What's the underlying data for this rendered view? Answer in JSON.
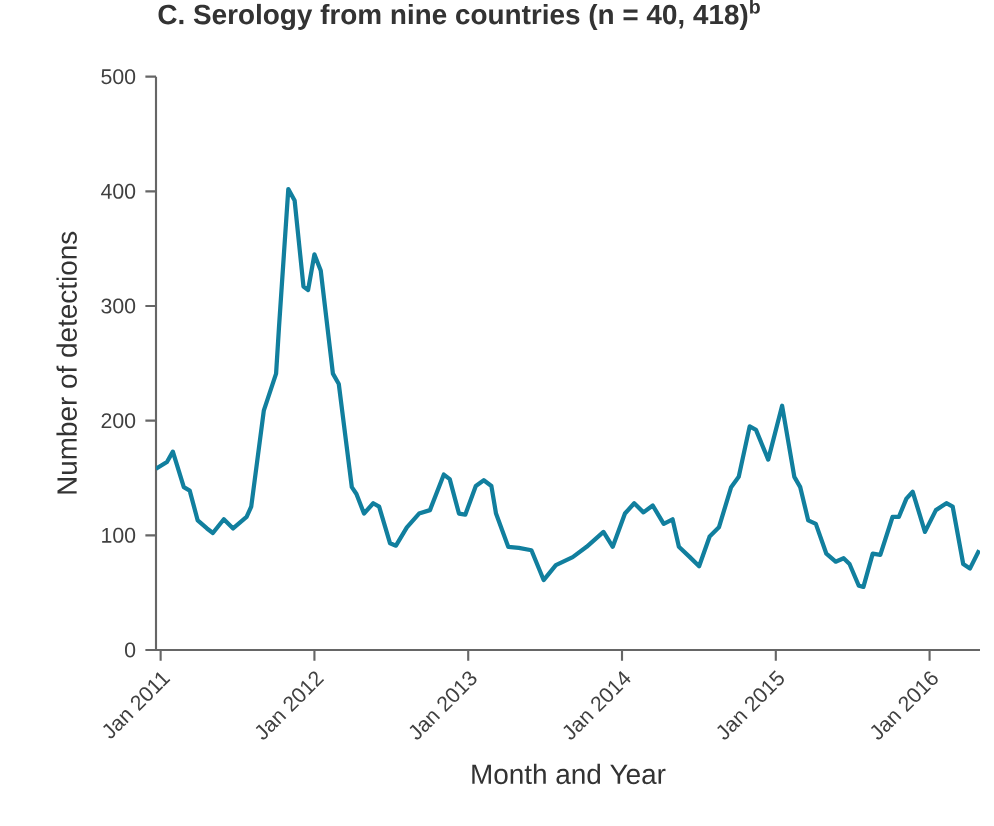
{
  "chart_data": {
    "type": "line",
    "title": "C. Serology from nine countries (n = 40, 418)$^{b}$",
    "xlabel": "Month and Year",
    "ylabel": "Number of detections",
    "xlim": [
      "2010-12-21",
      "2016-04-30"
    ],
    "ylim": [
      0,
      500
    ],
    "xticks": [
      {
        "value": "2011-01",
        "label": "Jan 2011"
      },
      {
        "value": "2012-01",
        "label": "Jan 2012"
      },
      {
        "value": "2013-01",
        "label": "Jan 2013"
      },
      {
        "value": "2014-01",
        "label": "Jan 2014"
      },
      {
        "value": "2015-01",
        "label": "Jan 2015"
      },
      {
        "value": "2016-01",
        "label": "Jan 2016"
      }
    ],
    "yticks": [
      0,
      100,
      200,
      300,
      400,
      500
    ],
    "series": [
      {
        "color": "#117f9e",
        "x": [
          "2010-12-21",
          "2011-01-16",
          "2011-01-30",
          "2011-02-25",
          "2011-03-11",
          "2011-03-30",
          "2011-04-21",
          "2011-05-05",
          "2011-05-31",
          "2011-06-22",
          "2011-07-24",
          "2011-08-04",
          "2011-09-03",
          "2011-10-02",
          "2011-10-09",
          "2011-10-31",
          "2011-11-15",
          "2011-12-06",
          "2011-12-17",
          "2012-01-01",
          "2012-01-16",
          "2012-02-14",
          "2012-02-28",
          "2012-03-30",
          "2012-04-10",
          "2012-04-28",
          "2012-05-20",
          "2012-06-03",
          "2012-06-29",
          "2012-07-13",
          "2012-08-08",
          "2012-09-06",
          "2012-10-02",
          "2012-11-04",
          "2012-11-18",
          "2012-12-10",
          "2012-12-25",
          "2013-01-19",
          "2013-02-07",
          "2013-02-25",
          "2013-03-08",
          "2013-04-06",
          "2013-05-01",
          "2013-05-31",
          "2013-06-29",
          "2013-07-28",
          "2013-09-06",
          "2013-10-09",
          "2013-11-18",
          "2013-12-10",
          "2014-01-08",
          "2014-01-30",
          "2014-02-21",
          "2014-03-15",
          "2014-04-10",
          "2014-05-01",
          "2014-05-16",
          "2014-06-11",
          "2014-07-03",
          "2014-07-28",
          "2014-08-19",
          "2014-09-17",
          "2014-10-05",
          "2014-10-31",
          "2014-11-15",
          "2014-12-14",
          "2015-01-16",
          "2015-02-14",
          "2015-02-28",
          "2015-03-19",
          "2015-04-06",
          "2015-05-01",
          "2015-05-23",
          "2015-06-11",
          "2015-06-25",
          "2015-07-17",
          "2015-07-28",
          "2015-08-19",
          "2015-09-06",
          "2015-10-05",
          "2015-10-20",
          "2015-11-07",
          "2015-11-22",
          "2015-12-21",
          "2016-01-16",
          "2016-02-10",
          "2016-02-25",
          "2016-03-21",
          "2016-04-06",
          "2016-04-28"
        ],
        "values": [
          158,
          164,
          173,
          142,
          139,
          113,
          106,
          102,
          114,
          106,
          116,
          125,
          209,
          241,
          282,
          402,
          392,
          317,
          314,
          345,
          331,
          241,
          232,
          142,
          136,
          119,
          128,
          125,
          93,
          91,
          107,
          119,
          122,
          153,
          149,
          119,
          118,
          143,
          148,
          143,
          119,
          90,
          89,
          87,
          61,
          74,
          81,
          90,
          103,
          90,
          119,
          128,
          120,
          126,
          110,
          114,
          90,
          81,
          73,
          99,
          107,
          142,
          151,
          195,
          192,
          166,
          213,
          151,
          142,
          113,
          110,
          84,
          77,
          80,
          75,
          56,
          55,
          84,
          83,
          116,
          116,
          132,
          138,
          103,
          122,
          128,
          125,
          75,
          71,
          87
        ]
      }
    ]
  }
}
